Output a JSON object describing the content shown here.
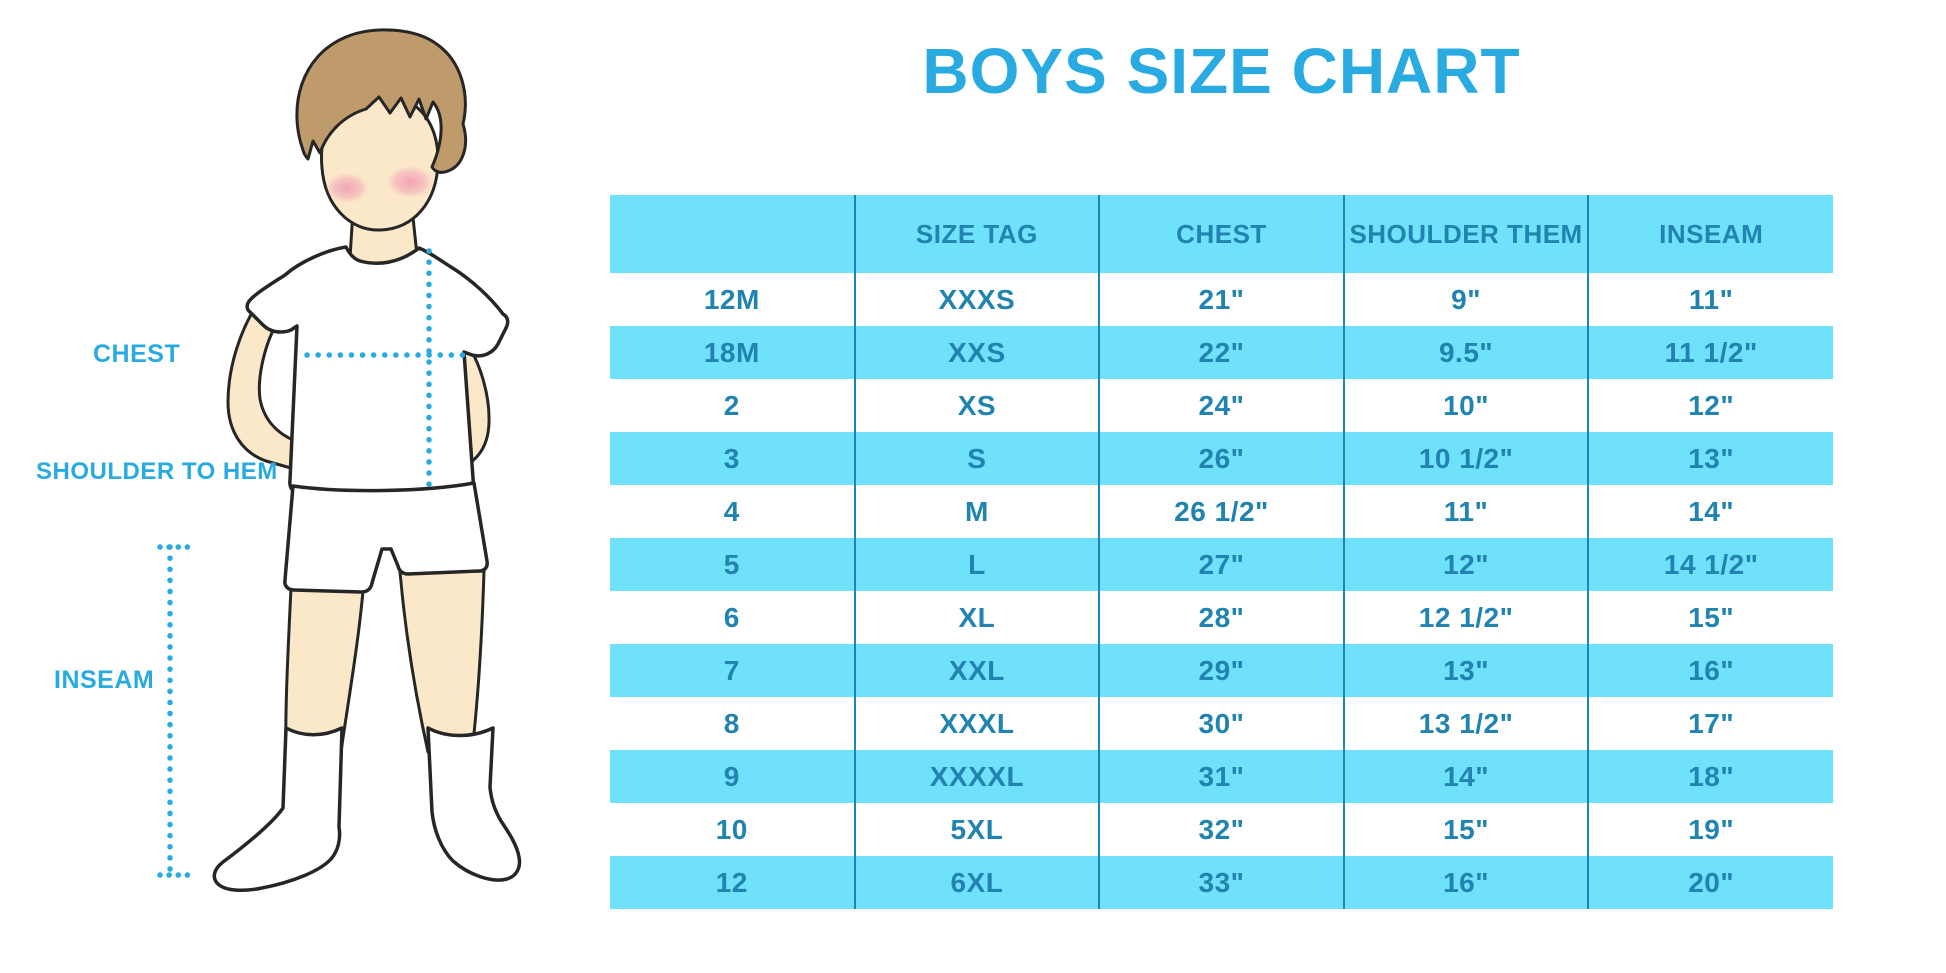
{
  "title": "BOYS SIZE CHART",
  "figure": {
    "labels": {
      "chest": "CHEST",
      "shoulder_to_hem": "SHOULDER TO HEM",
      "inseam": "INSEAM"
    }
  },
  "table": {
    "columns": [
      "",
      "SIZE TAG",
      "CHEST",
      "SHOULDER THEM",
      "INSEAM"
    ],
    "rows": [
      [
        "12M",
        "XXXS",
        "21\"",
        "9\"",
        "11\""
      ],
      [
        "18M",
        "XXS",
        "22\"",
        "9.5\"",
        "11 1/2\""
      ],
      [
        "2",
        "XS",
        "24\"",
        "10\"",
        "12\""
      ],
      [
        "3",
        "S",
        "26\"",
        "10 1/2\"",
        "13\""
      ],
      [
        "4",
        "M",
        "26 1/2\"",
        "11\"",
        "14\""
      ],
      [
        "5",
        "L",
        "27\"",
        "12\"",
        "14 1/2\""
      ],
      [
        "6",
        "XL",
        "28\"",
        "12 1/2\"",
        "15\""
      ],
      [
        "7",
        "XXL",
        "29\"",
        "13\"",
        "16\""
      ],
      [
        "8",
        "XXXL",
        "30\"",
        "13 1/2\"",
        "17\""
      ],
      [
        "9",
        "XXXXL",
        "31\"",
        "14\"",
        "18\""
      ],
      [
        "10",
        "5XL",
        "32\"",
        "15\"",
        "19\""
      ],
      [
        "12",
        "6XL",
        "33\"",
        "16\"",
        "20\""
      ]
    ]
  },
  "colors": {
    "accent": "#29abe2",
    "table_fill": "#70e1fa",
    "table_text": "#2083b0",
    "table_divider": "#1c85b5",
    "skin": "#fbe8c9",
    "hair": "#bf9a6b"
  }
}
